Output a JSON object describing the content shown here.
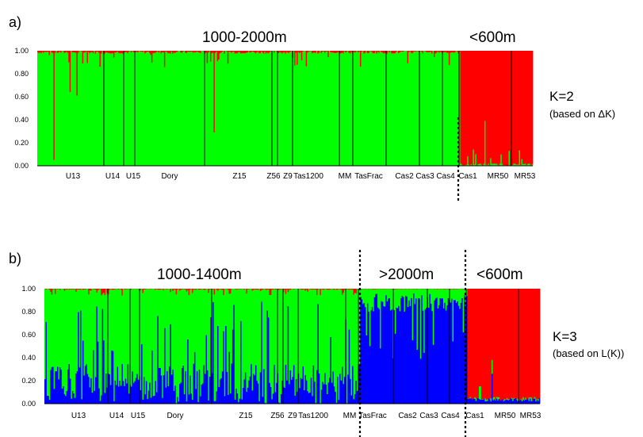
{
  "figure": {
    "panel_a": {
      "label": "a)",
      "k_label": "K=2",
      "k_note": "(based on ΔK)",
      "regions": [
        "1000-2000m",
        "<600m"
      ]
    },
    "panel_b": {
      "label": "b)",
      "k_label": "K=3",
      "k_note": "(based on L(K))",
      "regions": [
        "1000-1400m",
        ">2000m",
        "<600m"
      ]
    }
  },
  "chart_data": [
    {
      "type": "bar",
      "subtype": "stacked-admixture",
      "panel": "a)",
      "k": 2,
      "ylim": [
        0,
        1
      ],
      "y_ticks": [
        "1.00",
        "0.80",
        "0.60",
        "0.40",
        "0.20",
        "0.00"
      ],
      "colors": {
        "cluster1": "#00ff00",
        "cluster2": "#ff0000"
      },
      "populations": [
        "U13",
        "U14",
        "U15",
        "Dory",
        "Z15",
        "Z56",
        "Z9",
        "Tas1200",
        "MM",
        "TasFrac",
        "Cas2",
        "Cas3",
        "Cas4",
        "Cas1",
        "MR50",
        "MR53"
      ],
      "series": [
        {
          "values_summary": "cluster1 ≈0.97-1.00 for U13…Cas4; ≈0.0-0.05 for Cas1, MR50, MR53 (one Cas1 individual ≈0.39)"
        },
        {
          "values_summary": "cluster2 complement of cluster1"
        }
      ]
    },
    {
      "type": "bar",
      "subtype": "stacked-admixture",
      "panel": "b)",
      "k": 3,
      "ylim": [
        0,
        1
      ],
      "y_ticks": [
        "1.00",
        "0.80",
        "0.60",
        "0.40",
        "0.20",
        "0.00"
      ],
      "colors": {
        "cluster1": "#0000ff",
        "cluster2": "#00ff00",
        "cluster3": "#ff0000"
      },
      "populations": [
        "U13",
        "U14",
        "U15",
        "Dory",
        "Z15",
        "Z56",
        "Z9",
        "Tas1200",
        "MM",
        "TasFrac",
        "Cas2",
        "Cas3",
        "Cas4",
        "Cas1",
        "MR50",
        "MR53"
      ],
      "series": [
        {
          "values_summary": "cluster1 (blue) ≈0.05-0.40 for U13…MM; ≈0.80-0.97 for TasFrac…Cas4; ≈0.02-0.05 for Cas1…MR53"
        },
        {
          "values_summary": "cluster2 (green) fills to ≈0.98 for U13…Cas4; ≈0.0-0.05 for Cas1…MR53 (one Cas1 individual ≈0.38)"
        },
        {
          "values_summary": "cluster3 (red) ≈0.0-0.02 for U13…Cas4; ≈0.95-1.00 for Cas1…MR53"
        }
      ]
    }
  ]
}
